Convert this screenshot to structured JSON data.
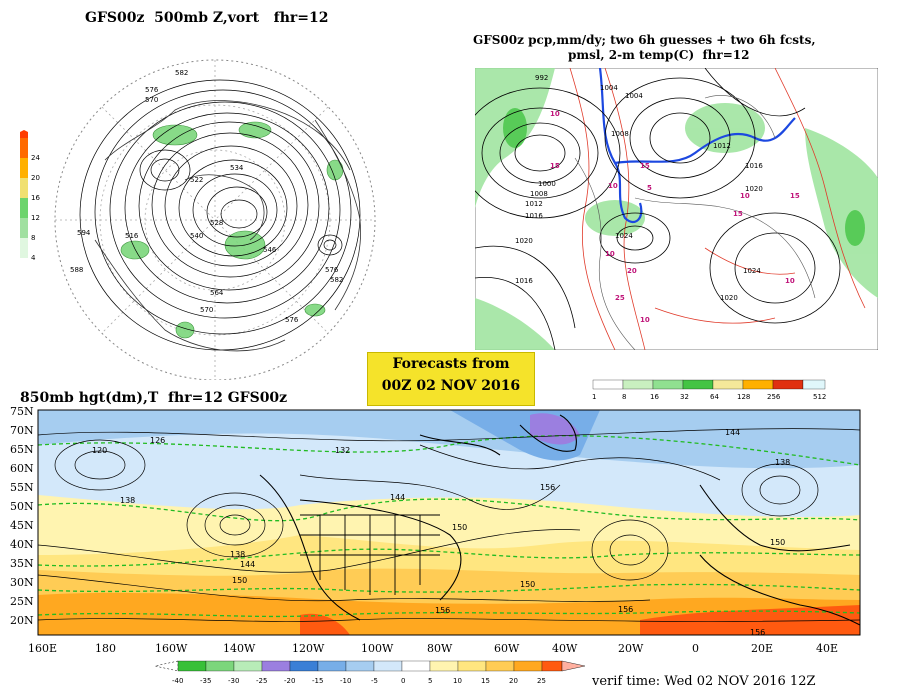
{
  "panel_500mb": {
    "title": "GFS00z  500mb Z,vort   fhr=12",
    "colorbar_ticks": [
      "24",
      "20",
      "16",
      "12",
      "8",
      "4"
    ],
    "colorbar_colors": [
      "#ff6a00",
      "#ffb000",
      "#f0e070",
      "#6cd46c",
      "#a0e0a0",
      "#e0f7e0"
    ],
    "contour_labels": [
      "582",
      "576",
      "570",
      "522",
      "534",
      "540",
      "516",
      "528",
      "594",
      "588",
      "564",
      "576",
      "582",
      "570",
      "546",
      "576"
    ]
  },
  "panel_pcp": {
    "title_line1": "GFS00z pcp,mm/dy; two 6h guesses + two 6h fcsts,",
    "title_line2": "pmsl, 2-m temp(C)  fhr=12",
    "colorbar_ticks": [
      "1",
      "8",
      "16",
      "32",
      "64",
      "128",
      "256",
      "512"
    ],
    "colorbar_colors": [
      "#ffffff",
      "#c9f0c0",
      "#90e090",
      "#44c444",
      "#f5e89a",
      "#ffb000",
      "#ff6a00",
      "#e03010"
    ],
    "isobar_labels": [
      "992",
      "1004",
      "1000",
      "1008",
      "1012",
      "1016",
      "1020",
      "1024",
      "1004",
      "1008",
      "1012",
      "1016",
      "1020",
      "1024",
      "1016",
      "1020"
    ],
    "temp_labels": [
      "10",
      "15",
      "10",
      "15",
      "5",
      "10",
      "15",
      "10",
      "20",
      "25",
      "10",
      "15",
      "10"
    ]
  },
  "forecast_box": {
    "line1": "Forecasts from",
    "line2": "00Z 02 NOV 2016"
  },
  "panel_850mb": {
    "title": "850mb hgt(dm),T  fhr=12 GFS00z",
    "lat_labels": [
      "75N",
      "70N",
      "65N",
      "60N",
      "55N",
      "50N",
      "45N",
      "40N",
      "35N",
      "30N",
      "25N",
      "20N"
    ],
    "lon_labels": [
      "160E",
      "180",
      "160W",
      "140W",
      "120W",
      "100W",
      "80W",
      "60W",
      "40W",
      "20W",
      "0",
      "20E",
      "40E"
    ],
    "height_labels": [
      "120",
      "126",
      "132",
      "138",
      "144",
      "150",
      "156",
      "138",
      "144",
      "150",
      "156",
      "150",
      "156",
      "144",
      "138",
      "150",
      "156"
    ],
    "temp_colorbar_ticks": [
      "-40",
      "-35",
      "-30",
      "-25",
      "-20",
      "-15",
      "-10",
      "-5",
      "0",
      "5",
      "10",
      "15",
      "20",
      "25"
    ],
    "temp_colorbar_colors": [
      "#38c038",
      "#7cd67c",
      "#b8ecb8",
      "#9b7fe0",
      "#3a7fd6",
      "#77aee8",
      "#a6cdf0",
      "#d3e8fa",
      "#ffffff",
      "#fff4b0",
      "#ffe680",
      "#ffcc55",
      "#ffa820",
      "#ff5a10"
    ]
  },
  "verif_time": "verif time: Wed 02 NOV 2016 12Z"
}
